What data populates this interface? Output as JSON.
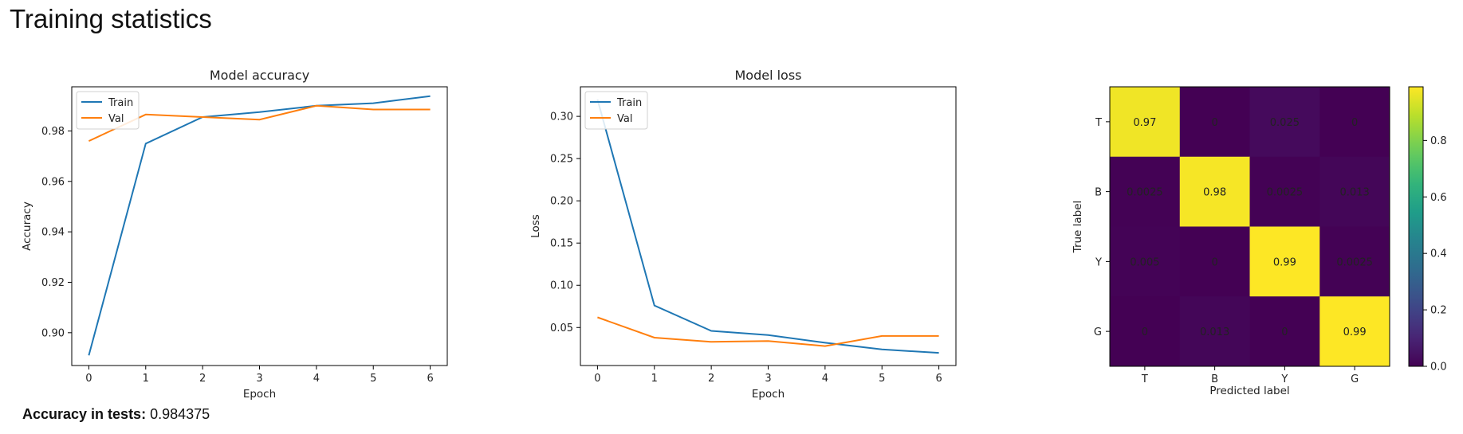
{
  "page": {
    "title": "Training statistics",
    "accuracy_label": "Accuracy in tests:",
    "accuracy_value": "0.984375"
  },
  "chart_data": [
    {
      "type": "line",
      "title": "Model accuracy",
      "xlabel": "Epoch",
      "ylabel": "Accuracy",
      "x": [
        0,
        1,
        2,
        3,
        4,
        5,
        6
      ],
      "xlim": [
        -0.3,
        6.3
      ],
      "ylim": [
        0.887,
        0.9975
      ],
      "xticks": [
        0,
        1,
        2,
        3,
        4,
        5,
        6
      ],
      "yticks": [
        0.9,
        0.92,
        0.94,
        0.96,
        0.98
      ],
      "ytick_labels": [
        "0.90",
        "0.92",
        "0.94",
        "0.96",
        "0.98"
      ],
      "legend_loc": "upper-left",
      "series": [
        {
          "name": "Train",
          "color": "#1f77b4",
          "values": [
            0.891,
            0.975,
            0.9855,
            0.9875,
            0.99,
            0.991,
            0.9938
          ]
        },
        {
          "name": "Val",
          "color": "#ff7f0e",
          "values": [
            0.976,
            0.9865,
            0.9855,
            0.9845,
            0.99,
            0.9885,
            0.9885
          ]
        }
      ]
    },
    {
      "type": "line",
      "title": "Model loss",
      "xlabel": "Epoch",
      "ylabel": "Loss",
      "x": [
        0,
        1,
        2,
        3,
        4,
        5,
        6
      ],
      "xlim": [
        -0.3,
        6.3
      ],
      "ylim": [
        0.005,
        0.335
      ],
      "xticks": [
        0,
        1,
        2,
        3,
        4,
        5,
        6
      ],
      "yticks": [
        0.05,
        0.1,
        0.15,
        0.2,
        0.25,
        0.3
      ],
      "ytick_labels": [
        "0.05",
        "0.10",
        "0.15",
        "0.20",
        "0.25",
        "0.30"
      ],
      "legend_loc": "upper-left",
      "series": [
        {
          "name": "Train",
          "color": "#1f77b4",
          "values": [
            0.32,
            0.076,
            0.046,
            0.041,
            0.032,
            0.024,
            0.02
          ]
        },
        {
          "name": "Val",
          "color": "#ff7f0e",
          "values": [
            0.062,
            0.038,
            0.033,
            0.034,
            0.028,
            0.04,
            0.04
          ]
        }
      ]
    },
    {
      "type": "heatmap",
      "title": "",
      "xlabel": "Predicted label",
      "ylabel": "True label",
      "x_categories": [
        "T",
        "B",
        "Y",
        "G"
      ],
      "y_categories": [
        "T",
        "B",
        "Y",
        "G"
      ],
      "values": [
        [
          0.97,
          0,
          0.025,
          0
        ],
        [
          0.0025,
          0.98,
          0.0025,
          0.013
        ],
        [
          0.005,
          0,
          0.99,
          0.0025
        ],
        [
          0,
          0.013,
          0,
          0.99
        ]
      ],
      "cell_labels": [
        [
          "0.97",
          "0",
          "0.025",
          "0"
        ],
        [
          "0.0025",
          "0.98",
          "0.0025",
          "0.013"
        ],
        [
          "0.005",
          "0",
          "0.99",
          "0.0025"
        ],
        [
          "0",
          "0.013",
          "0",
          "0.99"
        ]
      ],
      "colormap": "viridis",
      "colorbar_range": [
        0,
        0.99
      ],
      "colorbar_ticks": [
        0.0,
        0.2,
        0.4,
        0.6,
        0.8
      ],
      "colorbar_tick_labels": [
        "0.0",
        "0.2",
        "0.4",
        "0.6",
        "0.8"
      ]
    }
  ]
}
